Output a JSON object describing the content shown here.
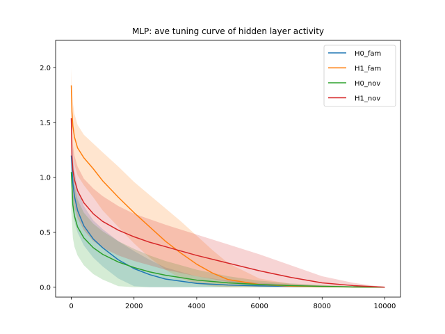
{
  "chart_data": {
    "type": "line",
    "title": "MLP: ave tuning curve of hidden layer activity",
    "xlabel": "",
    "ylabel": "",
    "xlim": [
      -500,
      10500
    ],
    "ylim": [
      -0.09,
      2.25
    ],
    "xticks": [
      0,
      2000,
      4000,
      6000,
      8000,
      10000
    ],
    "xtick_labels": [
      "0",
      "2000",
      "4000",
      "6000",
      "8000",
      "10000"
    ],
    "yticks": [
      0.0,
      0.5,
      1.0,
      1.5,
      2.0
    ],
    "ytick_labels": [
      "0.0",
      "0.5",
      "1.0",
      "1.5",
      "2.0"
    ],
    "grid": false,
    "legend_position": "top-right",
    "series": [
      {
        "name": "H0_fam",
        "color": "#1f77b4",
        "x": [
          0,
          50,
          100,
          200,
          400,
          700,
          1000,
          1500,
          2000,
          2500,
          3000,
          4000,
          5000,
          6000,
          7000,
          8000,
          9000,
          10000
        ],
        "y": [
          1.2,
          0.95,
          0.83,
          0.7,
          0.56,
          0.44,
          0.36,
          0.25,
          0.17,
          0.115,
          0.075,
          0.035,
          0.02,
          0.012,
          0.008,
          0.005,
          0.003,
          0.0
        ],
        "lower": [
          0.95,
          0.7,
          0.6,
          0.5,
          0.38,
          0.27,
          0.19,
          0.08,
          0.01,
          0.0,
          0.0,
          0.0,
          0.0,
          0.0,
          0.0,
          0.0,
          0.0,
          0.0
        ],
        "upper": [
          1.45,
          1.2,
          1.06,
          0.9,
          0.74,
          0.61,
          0.53,
          0.42,
          0.33,
          0.25,
          0.18,
          0.1,
          0.06,
          0.04,
          0.025,
          0.015,
          0.008,
          0.0
        ]
      },
      {
        "name": "H1_fam",
        "color": "#ff7f0e",
        "x": [
          0,
          20,
          50,
          100,
          200,
          400,
          700,
          1000,
          1500,
          2000,
          2500,
          3000,
          3500,
          4000,
          4500,
          5000,
          6000,
          7000,
          8000,
          9000,
          10000
        ],
        "y": [
          1.84,
          1.6,
          1.47,
          1.37,
          1.27,
          1.18,
          1.08,
          0.97,
          0.82,
          0.68,
          0.55,
          0.42,
          0.31,
          0.21,
          0.13,
          0.07,
          0.025,
          0.01,
          0.005,
          0.002,
          0.0
        ],
        "lower": [
          1.6,
          1.35,
          1.22,
          1.12,
          1.02,
          0.93,
          0.82,
          0.7,
          0.55,
          0.4,
          0.27,
          0.16,
          0.08,
          0.03,
          0.01,
          0.0,
          0.0,
          0.0,
          0.0,
          0.0,
          0.0
        ],
        "upper": [
          2.0,
          1.8,
          1.68,
          1.58,
          1.48,
          1.39,
          1.31,
          1.23,
          1.1,
          0.96,
          0.84,
          0.72,
          0.6,
          0.47,
          0.34,
          0.22,
          0.08,
          0.03,
          0.015,
          0.005,
          0.0
        ]
      },
      {
        "name": "H0_nov",
        "color": "#2ca02c",
        "x": [
          0,
          50,
          100,
          200,
          400,
          700,
          1000,
          1500,
          2000,
          2500,
          3000,
          4000,
          5000,
          6000,
          7000,
          8000,
          9000,
          10000
        ],
        "y": [
          1.05,
          0.75,
          0.65,
          0.55,
          0.45,
          0.36,
          0.3,
          0.23,
          0.18,
          0.14,
          0.11,
          0.065,
          0.04,
          0.025,
          0.015,
          0.008,
          0.003,
          0.0
        ],
        "lower": [
          0.7,
          0.45,
          0.37,
          0.29,
          0.2,
          0.12,
          0.07,
          0.01,
          0.0,
          0.0,
          0.0,
          0.0,
          0.0,
          0.0,
          0.0,
          0.0,
          0.0,
          0.0
        ],
        "upper": [
          1.3,
          1.05,
          0.93,
          0.8,
          0.68,
          0.58,
          0.51,
          0.42,
          0.35,
          0.29,
          0.24,
          0.16,
          0.1,
          0.06,
          0.035,
          0.02,
          0.008,
          0.0
        ]
      },
      {
        "name": "H1_nov",
        "color": "#d62728",
        "x": [
          0,
          20,
          50,
          100,
          200,
          400,
          700,
          1000,
          1500,
          2000,
          2500,
          3000,
          4000,
          5000,
          6000,
          7000,
          8000,
          9000,
          10000
        ],
        "y": [
          1.54,
          1.2,
          1.07,
          0.98,
          0.88,
          0.77,
          0.67,
          0.6,
          0.52,
          0.46,
          0.41,
          0.37,
          0.29,
          0.22,
          0.15,
          0.09,
          0.04,
          0.015,
          0.0
        ],
        "lower": [
          1.3,
          0.95,
          0.82,
          0.73,
          0.63,
          0.52,
          0.42,
          0.36,
          0.29,
          0.24,
          0.2,
          0.16,
          0.1,
          0.05,
          0.015,
          0.005,
          0.0,
          0.0,
          0.0
        ],
        "upper": [
          1.75,
          1.42,
          1.3,
          1.2,
          1.1,
          0.99,
          0.9,
          0.83,
          0.74,
          0.67,
          0.62,
          0.57,
          0.48,
          0.39,
          0.3,
          0.2,
          0.1,
          0.04,
          0.0
        ]
      }
    ]
  }
}
